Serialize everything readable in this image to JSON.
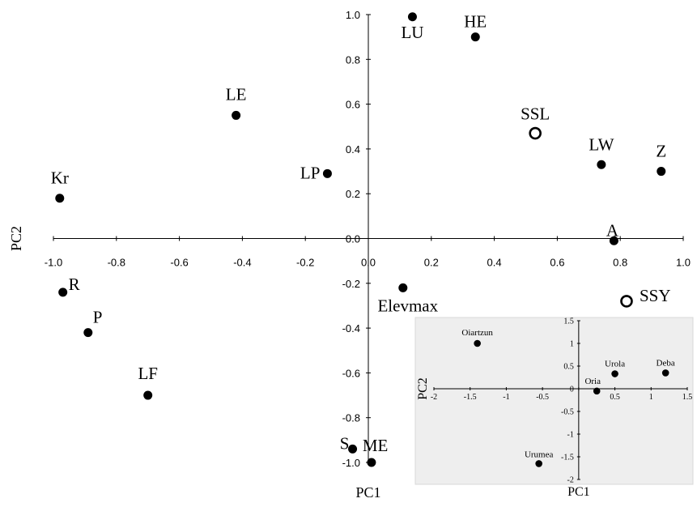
{
  "chart_data": [
    {
      "type": "scatter",
      "xlabel": "PC1",
      "ylabel": "PC2",
      "xlim": [
        -1.0,
        1.0
      ],
      "ylim": [
        -1.0,
        1.0
      ],
      "xticks": [
        "-1.0",
        "-0.8",
        "-0.6",
        "-0.4",
        "-0.2",
        "0.0",
        "0.2",
        "0.4",
        "0.6",
        "0.8",
        "1.0"
      ],
      "yticks": [
        "-1.0",
        "-0.8",
        "-0.6",
        "-0.4",
        "-0.2",
        "0.0",
        "0.2",
        "0.4",
        "0.6",
        "0.8",
        "1.0"
      ],
      "grid": false,
      "points": [
        {
          "label": "LU",
          "x": 0.14,
          "y": 0.99,
          "marker": "filled"
        },
        {
          "label": "HE",
          "x": 0.34,
          "y": 0.9,
          "marker": "filled"
        },
        {
          "label": "LE",
          "x": -0.42,
          "y": 0.55,
          "marker": "filled"
        },
        {
          "label": "SSL",
          "x": 0.53,
          "y": 0.47,
          "marker": "open"
        },
        {
          "label": "LW",
          "x": 0.74,
          "y": 0.33,
          "marker": "filled"
        },
        {
          "label": "Z",
          "x": 0.93,
          "y": 0.3,
          "marker": "filled"
        },
        {
          "label": "LP",
          "x": -0.13,
          "y": 0.29,
          "marker": "filled"
        },
        {
          "label": "Kr",
          "x": -0.98,
          "y": 0.18,
          "marker": "filled"
        },
        {
          "label": "A",
          "x": 0.78,
          "y": -0.01,
          "marker": "filled"
        },
        {
          "label": "Elevmax",
          "x": 0.11,
          "y": -0.22,
          "marker": "filled"
        },
        {
          "label": "R",
          "x": -0.97,
          "y": -0.24,
          "marker": "filled"
        },
        {
          "label": "SSY",
          "x": 0.82,
          "y": -0.28,
          "marker": "open"
        },
        {
          "label": "P",
          "x": -0.89,
          "y": -0.42,
          "marker": "filled"
        },
        {
          "label": "LF",
          "x": -0.7,
          "y": -0.7,
          "marker": "filled"
        },
        {
          "label": "S",
          "x": -0.05,
          "y": -0.94,
          "marker": "filled"
        },
        {
          "label": "ME",
          "x": 0.01,
          "y": -1.0,
          "marker": "filled"
        }
      ]
    },
    {
      "type": "scatter",
      "xlabel": "PC1",
      "ylabel": "PC2",
      "xlim": [
        -2,
        1.5
      ],
      "ylim": [
        -2,
        1.5
      ],
      "xticks": [
        "-2",
        "-1.5",
        "-1",
        "-0.5",
        "0",
        "0.5",
        "1",
        "1.5"
      ],
      "yticks": [
        "-2",
        "-1.5",
        "-1",
        "-0.5",
        "0",
        "0.5",
        "1",
        "1.5"
      ],
      "grid": false,
      "background": "#eeeeee",
      "points": [
        {
          "label": "Oiartzun",
          "x": -1.4,
          "y": 1.0
        },
        {
          "label": "Deba",
          "x": 1.2,
          "y": 0.35
        },
        {
          "label": "Urola",
          "x": 0.5,
          "y": 0.33
        },
        {
          "label": "Oria",
          "x": 0.25,
          "y": -0.05
        },
        {
          "label": "Urumea",
          "x": -0.55,
          "y": -1.65
        }
      ]
    }
  ]
}
